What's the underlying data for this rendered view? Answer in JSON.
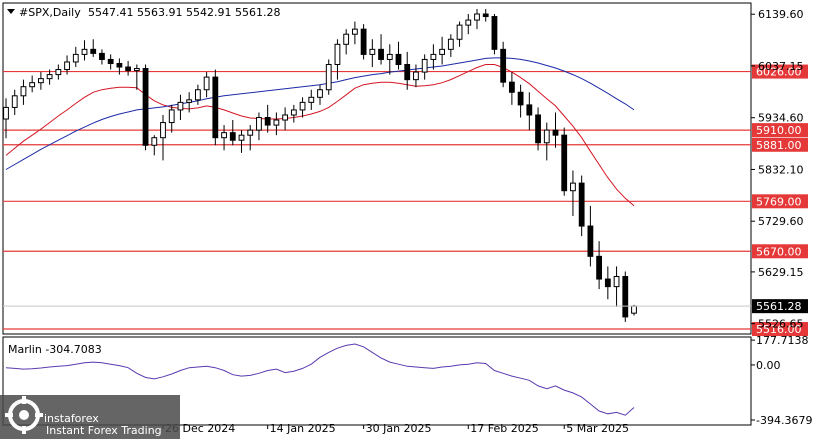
{
  "header": {
    "symbol": "#SPX,Daily",
    "ohlc": "5547.41 5563.91 5542.91 5561.28"
  },
  "indicator": {
    "label": "Marlin -304.7083"
  },
  "logo": {
    "brand": "instaforex",
    "tagline": "Instant Forex Trading"
  },
  "colors": {
    "background": "#ffffff",
    "candle": "#000000",
    "ma_fast": "#d41624",
    "ma_slow": "#1c2aa6",
    "level_line": "#e53939",
    "oscillator": "#5a3ab0",
    "frame": "#000000",
    "grid_text": "#000000"
  },
  "chart_data": [
    {
      "type": "candlestick",
      "title": "#SPX,Daily",
      "y_ticks": [
        "6139.60",
        "6037.15",
        "5934.60",
        "5832.10",
        "5729.60",
        "5629.15",
        "5526.65"
      ],
      "y_tick_values": [
        6139.6,
        6037.15,
        5934.6,
        5832.1,
        5729.6,
        5629.15,
        5526.65
      ],
      "ylim": [
        5506.15,
        6161.82
      ],
      "x_tick_labels": [
        "26 Dec 2024",
        "14 Jan 2025",
        "30 Jan 2025",
        "17 Feb 2025",
        "5 Mar 2025"
      ],
      "x_tick_indices": [
        18,
        30,
        41,
        53,
        64
      ],
      "horizontal_levels": [
        {
          "label": "6026.00",
          "value": 6026.0
        },
        {
          "label": "5910.00",
          "value": 5910.0
        },
        {
          "label": "5881.00",
          "value": 5881.0
        },
        {
          "label": "5769.00",
          "value": 5769.0
        },
        {
          "label": "5670.00",
          "value": 5670.0
        },
        {
          "label": "5516.00",
          "value": 5516.0
        }
      ],
      "current_price_label": "5561.28",
      "current_price": 5561.28,
      "candles": [
        [
          5932,
          5973,
          5894,
          5955
        ],
        [
          5955,
          5990,
          5940,
          5978
        ],
        [
          5978,
          6010,
          5960,
          5996
        ],
        [
          5996,
          6018,
          5985,
          6004
        ],
        [
          6004,
          6025,
          5990,
          6012
        ],
        [
          6012,
          6030,
          6000,
          6020
        ],
        [
          6020,
          6040,
          6010,
          6030
        ],
        [
          6030,
          6058,
          6020,
          6045
        ],
        [
          6045,
          6075,
          6035,
          6060
        ],
        [
          6060,
          6088,
          6048,
          6070
        ],
        [
          6070,
          6090,
          6055,
          6062
        ],
        [
          6062,
          6070,
          6040,
          6050
        ],
        [
          6050,
          6060,
          6030,
          6042
        ],
        [
          6042,
          6052,
          6020,
          6035
        ],
        [
          6035,
          6047,
          6018,
          6028
        ],
        [
          6028,
          6040,
          5990,
          6032
        ],
        [
          6032,
          6040,
          5870,
          5880
        ],
        [
          5880,
          5900,
          5860,
          5895
        ],
        [
          5895,
          5940,
          5850,
          5925
        ],
        [
          5925,
          5960,
          5905,
          5950
        ],
        [
          5950,
          5980,
          5930,
          5965
        ],
        [
          5965,
          5985,
          5945,
          5970
        ],
        [
          5970,
          6000,
          5960,
          5990
        ],
        [
          5990,
          6025,
          5975,
          6015
        ],
        [
          6015,
          6030,
          5880,
          5895
        ],
        [
          5895,
          5920,
          5870,
          5905
        ],
        [
          5905,
          5930,
          5880,
          5890
        ],
        [
          5890,
          5910,
          5865,
          5900
        ],
        [
          5900,
          5920,
          5870,
          5910
        ],
        [
          5910,
          5945,
          5890,
          5935
        ],
        [
          5935,
          5960,
          5905,
          5920
        ],
        [
          5920,
          5945,
          5900,
          5930
        ],
        [
          5930,
          5955,
          5910,
          5940
        ],
        [
          5940,
          5960,
          5925,
          5950
        ],
        [
          5950,
          5975,
          5935,
          5965
        ],
        [
          5965,
          5990,
          5950,
          5975
        ],
        [
          5975,
          6000,
          5960,
          5990
        ],
        [
          5990,
          6050,
          5980,
          6040
        ],
        [
          6040,
          6090,
          6010,
          6080
        ],
        [
          6080,
          6110,
          6060,
          6100
        ],
        [
          6100,
          6125,
          6080,
          6110
        ],
        [
          6110,
          6120,
          6050,
          6060
        ],
        [
          6060,
          6090,
          6035,
          6070
        ],
        [
          6070,
          6100,
          6040,
          6050
        ],
        [
          6050,
          6080,
          6020,
          6060
        ],
        [
          6060,
          6085,
          6030,
          6040
        ],
        [
          6040,
          6065,
          5990,
          6010
        ],
        [
          6010,
          6040,
          5995,
          6025
        ],
        [
          6025,
          6060,
          6010,
          6050
        ],
        [
          6050,
          6080,
          6030,
          6060
        ],
        [
          6060,
          6095,
          6040,
          6070
        ],
        [
          6070,
          6100,
          6055,
          6090
        ],
        [
          6090,
          6125,
          6075,
          6118
        ],
        [
          6118,
          6140,
          6100,
          6128
        ],
        [
          6128,
          6150,
          6110,
          6140
        ],
        [
          6140,
          6150,
          6125,
          6135
        ],
        [
          6135,
          6140,
          6060,
          6070
        ],
        [
          6070,
          6085,
          5995,
          6005
        ],
        [
          6005,
          6025,
          5960,
          5985
        ],
        [
          5985,
          6000,
          5935,
          5960
        ],
        [
          5960,
          5985,
          5910,
          5940
        ],
        [
          5940,
          5955,
          5870,
          5885
        ],
        [
          5885,
          5925,
          5850,
          5910
        ],
        [
          5910,
          5945,
          5875,
          5900
        ],
        [
          5900,
          5915,
          5780,
          5790
        ],
        [
          5790,
          5830,
          5740,
          5805
        ],
        [
          5805,
          5820,
          5700,
          5720
        ],
        [
          5720,
          5760,
          5640,
          5660
        ],
        [
          5660,
          5690,
          5595,
          5615
        ],
        [
          5615,
          5640,
          5575,
          5600
        ],
        [
          5600,
          5640,
          5560,
          5620
        ],
        [
          5620,
          5630,
          5530,
          5540
        ],
        [
          5547.41,
          5563.91,
          5542.91,
          5561.28
        ]
      ],
      "series": [
        {
          "name": "",
          "type": "ma_fast",
          "values": [
            5860,
            5874,
            5888,
            5900,
            5912,
            5925,
            5938,
            5950,
            5963,
            5975,
            5985,
            5990,
            5993,
            5995,
            5995,
            5994,
            5980,
            5968,
            5960,
            5955,
            5953,
            5952,
            5954,
            5958,
            5955,
            5950,
            5944,
            5938,
            5934,
            5933,
            5932,
            5932,
            5933,
            5935,
            5938,
            5942,
            5947,
            5955,
            5967,
            5980,
            5993,
            6000,
            6003,
            6005,
            6005,
            6003,
            6000,
            5997,
            5998,
            6000,
            6004,
            6010,
            6018,
            6026,
            6034,
            6040,
            6040,
            6034,
            6025,
            6014,
            6002,
            5987,
            5972,
            5958,
            5938,
            5918,
            5895,
            5868,
            5842,
            5816,
            5793,
            5775,
            5760
          ]
        },
        {
          "name": "",
          "type": "ma_slow",
          "values": [
            5832,
            5842,
            5852,
            5862,
            5872,
            5881,
            5890,
            5899,
            5908,
            5916,
            5924,
            5931,
            5937,
            5942,
            5946,
            5950,
            5952,
            5954,
            5956,
            5959,
            5962,
            5965,
            5968,
            5972,
            5975,
            5978,
            5980,
            5982,
            5984,
            5986,
            5988,
            5990,
            5992,
            5994,
            5996,
            5998,
            6000,
            6003,
            6006,
            6010,
            6014,
            6017,
            6020,
            6022,
            6025,
            6027,
            6029,
            6031,
            6033,
            6035,
            6037,
            6040,
            6043,
            6046,
            6049,
            6052,
            6053,
            6053,
            6052,
            6050,
            6047,
            6043,
            6038,
            6033,
            6027,
            6020,
            6012,
            6003,
            5993,
            5983,
            5972,
            5962,
            5950
          ]
        }
      ]
    },
    {
      "type": "line",
      "title": "Marlin -304.7083",
      "y_ticks": [
        "177.7138",
        "0.00",
        "-394.3679"
      ],
      "y_tick_values": [
        177.7138,
        0.0,
        -394.3679
      ],
      "ylim": [
        -430,
        200
      ],
      "series": [
        {
          "name": "",
          "values": [
            -20,
            -25,
            -30,
            -28,
            -22,
            -15,
            -10,
            -5,
            5,
            15,
            20,
            15,
            5,
            -5,
            -20,
            -60,
            -90,
            -100,
            -85,
            -65,
            -40,
            -20,
            -15,
            -10,
            -20,
            -40,
            -70,
            -80,
            -75,
            -60,
            -40,
            -30,
            -55,
            -45,
            -25,
            5,
            55,
            90,
            120,
            140,
            150,
            130,
            90,
            50,
            20,
            5,
            -10,
            -15,
            -20,
            -25,
            -15,
            -10,
            0,
            5,
            15,
            10,
            -40,
            -60,
            -80,
            -95,
            -110,
            -150,
            -170,
            -150,
            -180,
            -200,
            -230,
            -280,
            -330,
            -350,
            -340,
            -360,
            -304.7083
          ]
        }
      ]
    }
  ]
}
